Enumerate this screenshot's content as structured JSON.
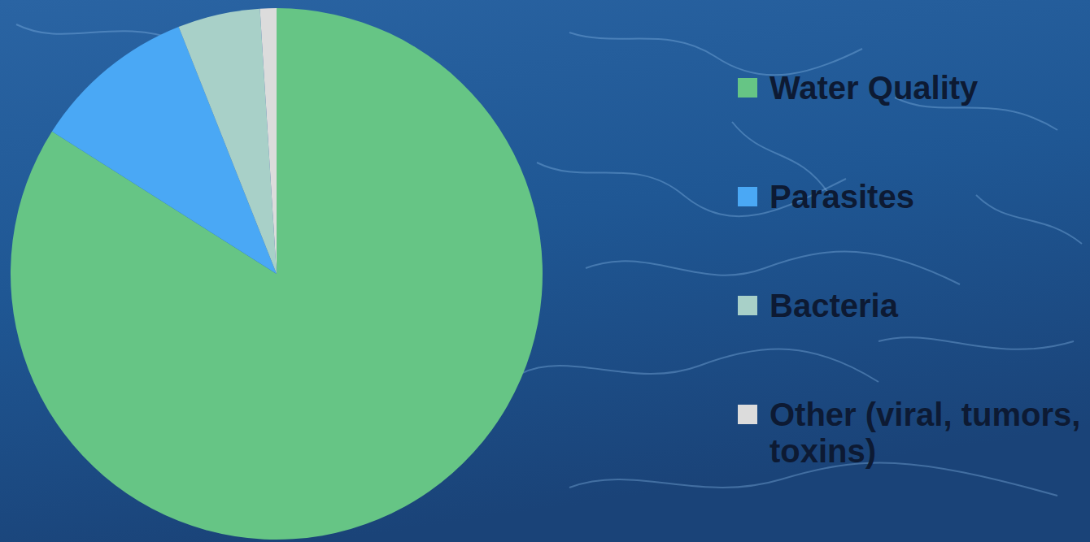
{
  "chart_data": {
    "type": "pie",
    "categories": [
      "Water Quality",
      "Parasites",
      "Bacteria",
      "Other (viral, tumors, toxins)"
    ],
    "values": [
      84,
      10,
      5,
      1
    ],
    "colors": [
      "#66c585",
      "#4aa8f5",
      "#a8d0c8",
      "#dcdcdc"
    ],
    "legend": "right"
  }
}
